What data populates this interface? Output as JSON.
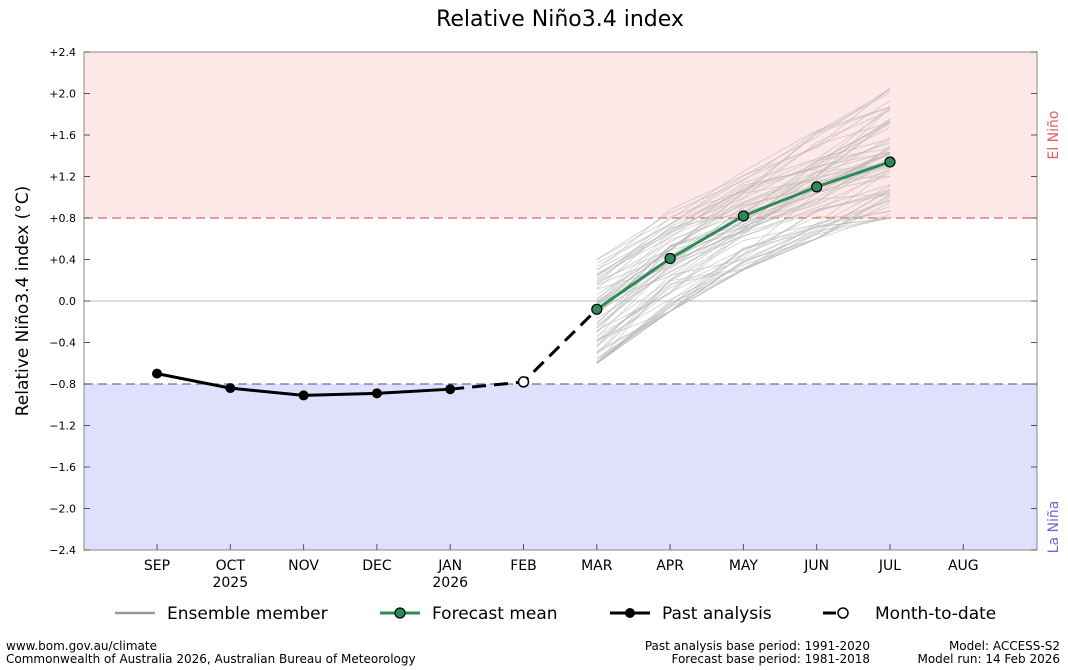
{
  "chart_data": {
    "type": "line",
    "title": "Relative Niño3.4 index",
    "ylabel": "Relative Niño3.4 index (°C)",
    "ylim": [
      -2.4,
      2.4
    ],
    "yticks": [
      "+2.4",
      "+2.0",
      "+1.6",
      "+1.2",
      "+0.8",
      "+0.4",
      "0.0",
      "-0.4",
      "-0.8",
      "-1.2",
      "-1.6",
      "-2.0",
      "-2.4"
    ],
    "categories": [
      "SEP",
      "OCT",
      "NOV",
      "DEC",
      "JAN",
      "FEB",
      "MAR",
      "APR",
      "MAY",
      "JUN",
      "JUL",
      "AUG"
    ],
    "year_labels": [
      {
        "month": "OCT",
        "label": "2025"
      },
      {
        "month": "JAN",
        "label": "2026"
      }
    ],
    "thresholds": [
      {
        "name": "El Niño",
        "value": 0.8,
        "color": "#e06060",
        "band_color": "#ffe8e8"
      },
      {
        "name": "La Niña",
        "value": -0.8,
        "color": "#6a6ad0",
        "band_color": "#e0e0fc"
      }
    ],
    "series": [
      {
        "name": "Past analysis",
        "x": [
          "SEP",
          "OCT",
          "NOV",
          "DEC",
          "JAN"
        ],
        "values": [
          -0.7,
          -0.84,
          -0.91,
          -0.89,
          -0.85
        ],
        "color": "#000000"
      },
      {
        "name": "Month-to-date",
        "x": [
          "JAN",
          "FEB",
          "MAR"
        ],
        "values": [
          -0.85,
          -0.78,
          -0.08
        ],
        "color": "#000000"
      },
      {
        "name": "Forecast mean",
        "x": [
          "MAR",
          "APR",
          "MAY",
          "JUN",
          "JUL"
        ],
        "values": [
          -0.08,
          0.41,
          0.82,
          1.1,
          1.34
        ],
        "color": "#2e8b57"
      },
      {
        "name": "Ensemble member",
        "x": [
          "MAR",
          "APR",
          "MAY",
          "JUN",
          "JUL"
        ],
        "range_low": [
          -0.6,
          -0.1,
          0.3,
          0.6,
          0.8
        ],
        "range_high": [
          0.4,
          0.95,
          1.25,
          1.65,
          2.05
        ],
        "color": "#b8b8b8"
      }
    ],
    "legend": {
      "position": "bottom",
      "items": [
        "Ensemble member",
        "Forecast mean",
        "Past analysis",
        "Month-to-date"
      ]
    },
    "grid": false
  },
  "footer": {
    "url": "www.bom.gov.au/climate",
    "copyright": "Commonwealth of Australia 2026, Australian Bureau of Meteorology",
    "past_base": "Past analysis base period: 1991-2020",
    "forecast_base": "Forecast base period: 1981-2018",
    "model": "Model: ACCESS-S2",
    "model_run": "Model run: 14 Feb 2026"
  }
}
